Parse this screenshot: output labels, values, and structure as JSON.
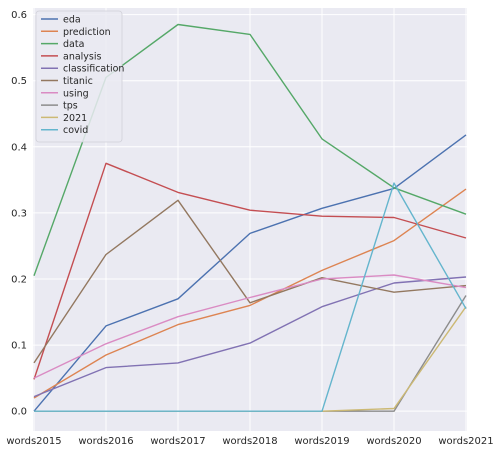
{
  "chart_data": {
    "type": "line",
    "title": "",
    "xlabel": "",
    "ylabel": "",
    "categories": [
      "words2015",
      "words2016",
      "words2017",
      "words2018",
      "words2019",
      "words2020",
      "words2021"
    ],
    "ylim": [
      -0.03,
      0.61
    ],
    "yticks": [
      "0.0",
      "0.1",
      "0.2",
      "0.3",
      "0.4",
      "0.5",
      "0.6"
    ],
    "ytick_values": [
      0.0,
      0.1,
      0.2,
      0.3,
      0.4,
      0.5,
      0.6
    ],
    "grid": true,
    "legend_position": "top-left",
    "series": [
      {
        "name": "eda",
        "color": "#4c72b0",
        "values": [
          0.0,
          0.129,
          0.17,
          0.269,
          0.307,
          0.337,
          0.418
        ]
      },
      {
        "name": "prediction",
        "color": "#dd8452",
        "values": [
          0.02,
          0.085,
          0.131,
          0.16,
          0.213,
          0.258,
          0.336
        ]
      },
      {
        "name": "data",
        "color": "#55a868",
        "values": [
          0.205,
          0.505,
          0.585,
          0.57,
          0.412,
          0.338,
          0.298
        ]
      },
      {
        "name": "analysis",
        "color": "#c44e52",
        "values": [
          0.048,
          0.375,
          0.331,
          0.304,
          0.295,
          0.293,
          0.262
        ]
      },
      {
        "name": "classification",
        "color": "#8172b3",
        "values": [
          0.022,
          0.066,
          0.073,
          0.103,
          0.158,
          0.194,
          0.203
        ]
      },
      {
        "name": "titanic",
        "color": "#937860",
        "values": [
          0.073,
          0.237,
          0.319,
          0.164,
          0.202,
          0.18,
          0.19
        ]
      },
      {
        "name": "using",
        "color": "#da8bc3",
        "values": [
          0.05,
          0.102,
          0.143,
          0.172,
          0.2,
          0.206,
          0.187
        ]
      },
      {
        "name": "tps",
        "color": "#8c8c8c",
        "values": [
          0.0,
          0.0,
          0.0,
          0.0,
          0.0,
          0.0,
          0.175
        ]
      },
      {
        "name": "2021",
        "color": "#ccb974",
        "values": [
          0.0,
          0.0,
          0.0,
          0.0,
          0.0,
          0.004,
          0.158
        ]
      },
      {
        "name": "covid",
        "color": "#64b5cd",
        "values": [
          0.0,
          0.0,
          0.0,
          0.0,
          0.0,
          0.345,
          0.155
        ]
      }
    ]
  }
}
